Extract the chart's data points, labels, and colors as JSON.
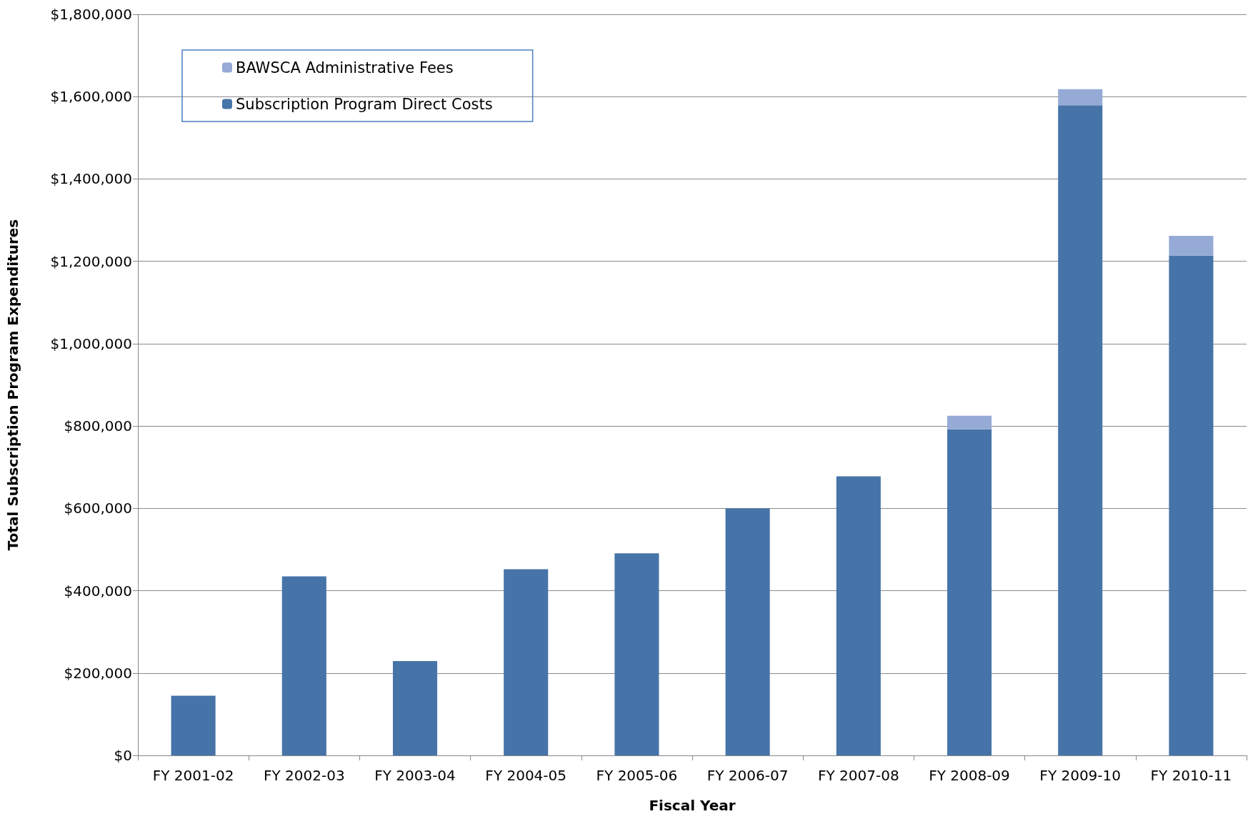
{
  "chart_data": {
    "type": "bar",
    "stacked": true,
    "xlabel": "Fiscal Year",
    "ylabel": "Total Subscription Program Expenditures",
    "categories": [
      "FY 2001-02",
      "FY 2002-03",
      "FY 2003-04",
      "FY 2004-05",
      "FY 2005-06",
      "FY 2006-07",
      "FY 2007-08",
      "FY 2008-09",
      "FY 2009-10",
      "FY 2010-11"
    ],
    "series": [
      {
        "name": "Subscription Program Direct Costs",
        "color": "#4674a9",
        "values": [
          145000,
          435000,
          229000,
          452000,
          491000,
          600000,
          678000,
          792000,
          1579000,
          1214000
        ]
      },
      {
        "name": "BAWSCA Administrative Fees",
        "color": "#95abd5",
        "values": [
          null,
          null,
          null,
          null,
          null,
          null,
          null,
          33000,
          39000,
          48000
        ]
      }
    ],
    "ylim": [
      0,
      1800000
    ],
    "yticks": [
      {
        "value": 0,
        "label": "$0"
      },
      {
        "value": 200000,
        "label": "$200,000"
      },
      {
        "value": 400000,
        "label": "$400,000"
      },
      {
        "value": 600000,
        "label": "$600,000"
      },
      {
        "value": 800000,
        "label": "$800,000"
      },
      {
        "value": 1000000,
        "label": "$1,000,000"
      },
      {
        "value": 1200000,
        "label": "$1,200,000"
      },
      {
        "value": 1400000,
        "label": "$1,400,000"
      },
      {
        "value": 1600000,
        "label": "$1,600,000"
      },
      {
        "value": 1800000,
        "label": "$1,800,000"
      }
    ],
    "grid": "y",
    "legend": "top left"
  }
}
